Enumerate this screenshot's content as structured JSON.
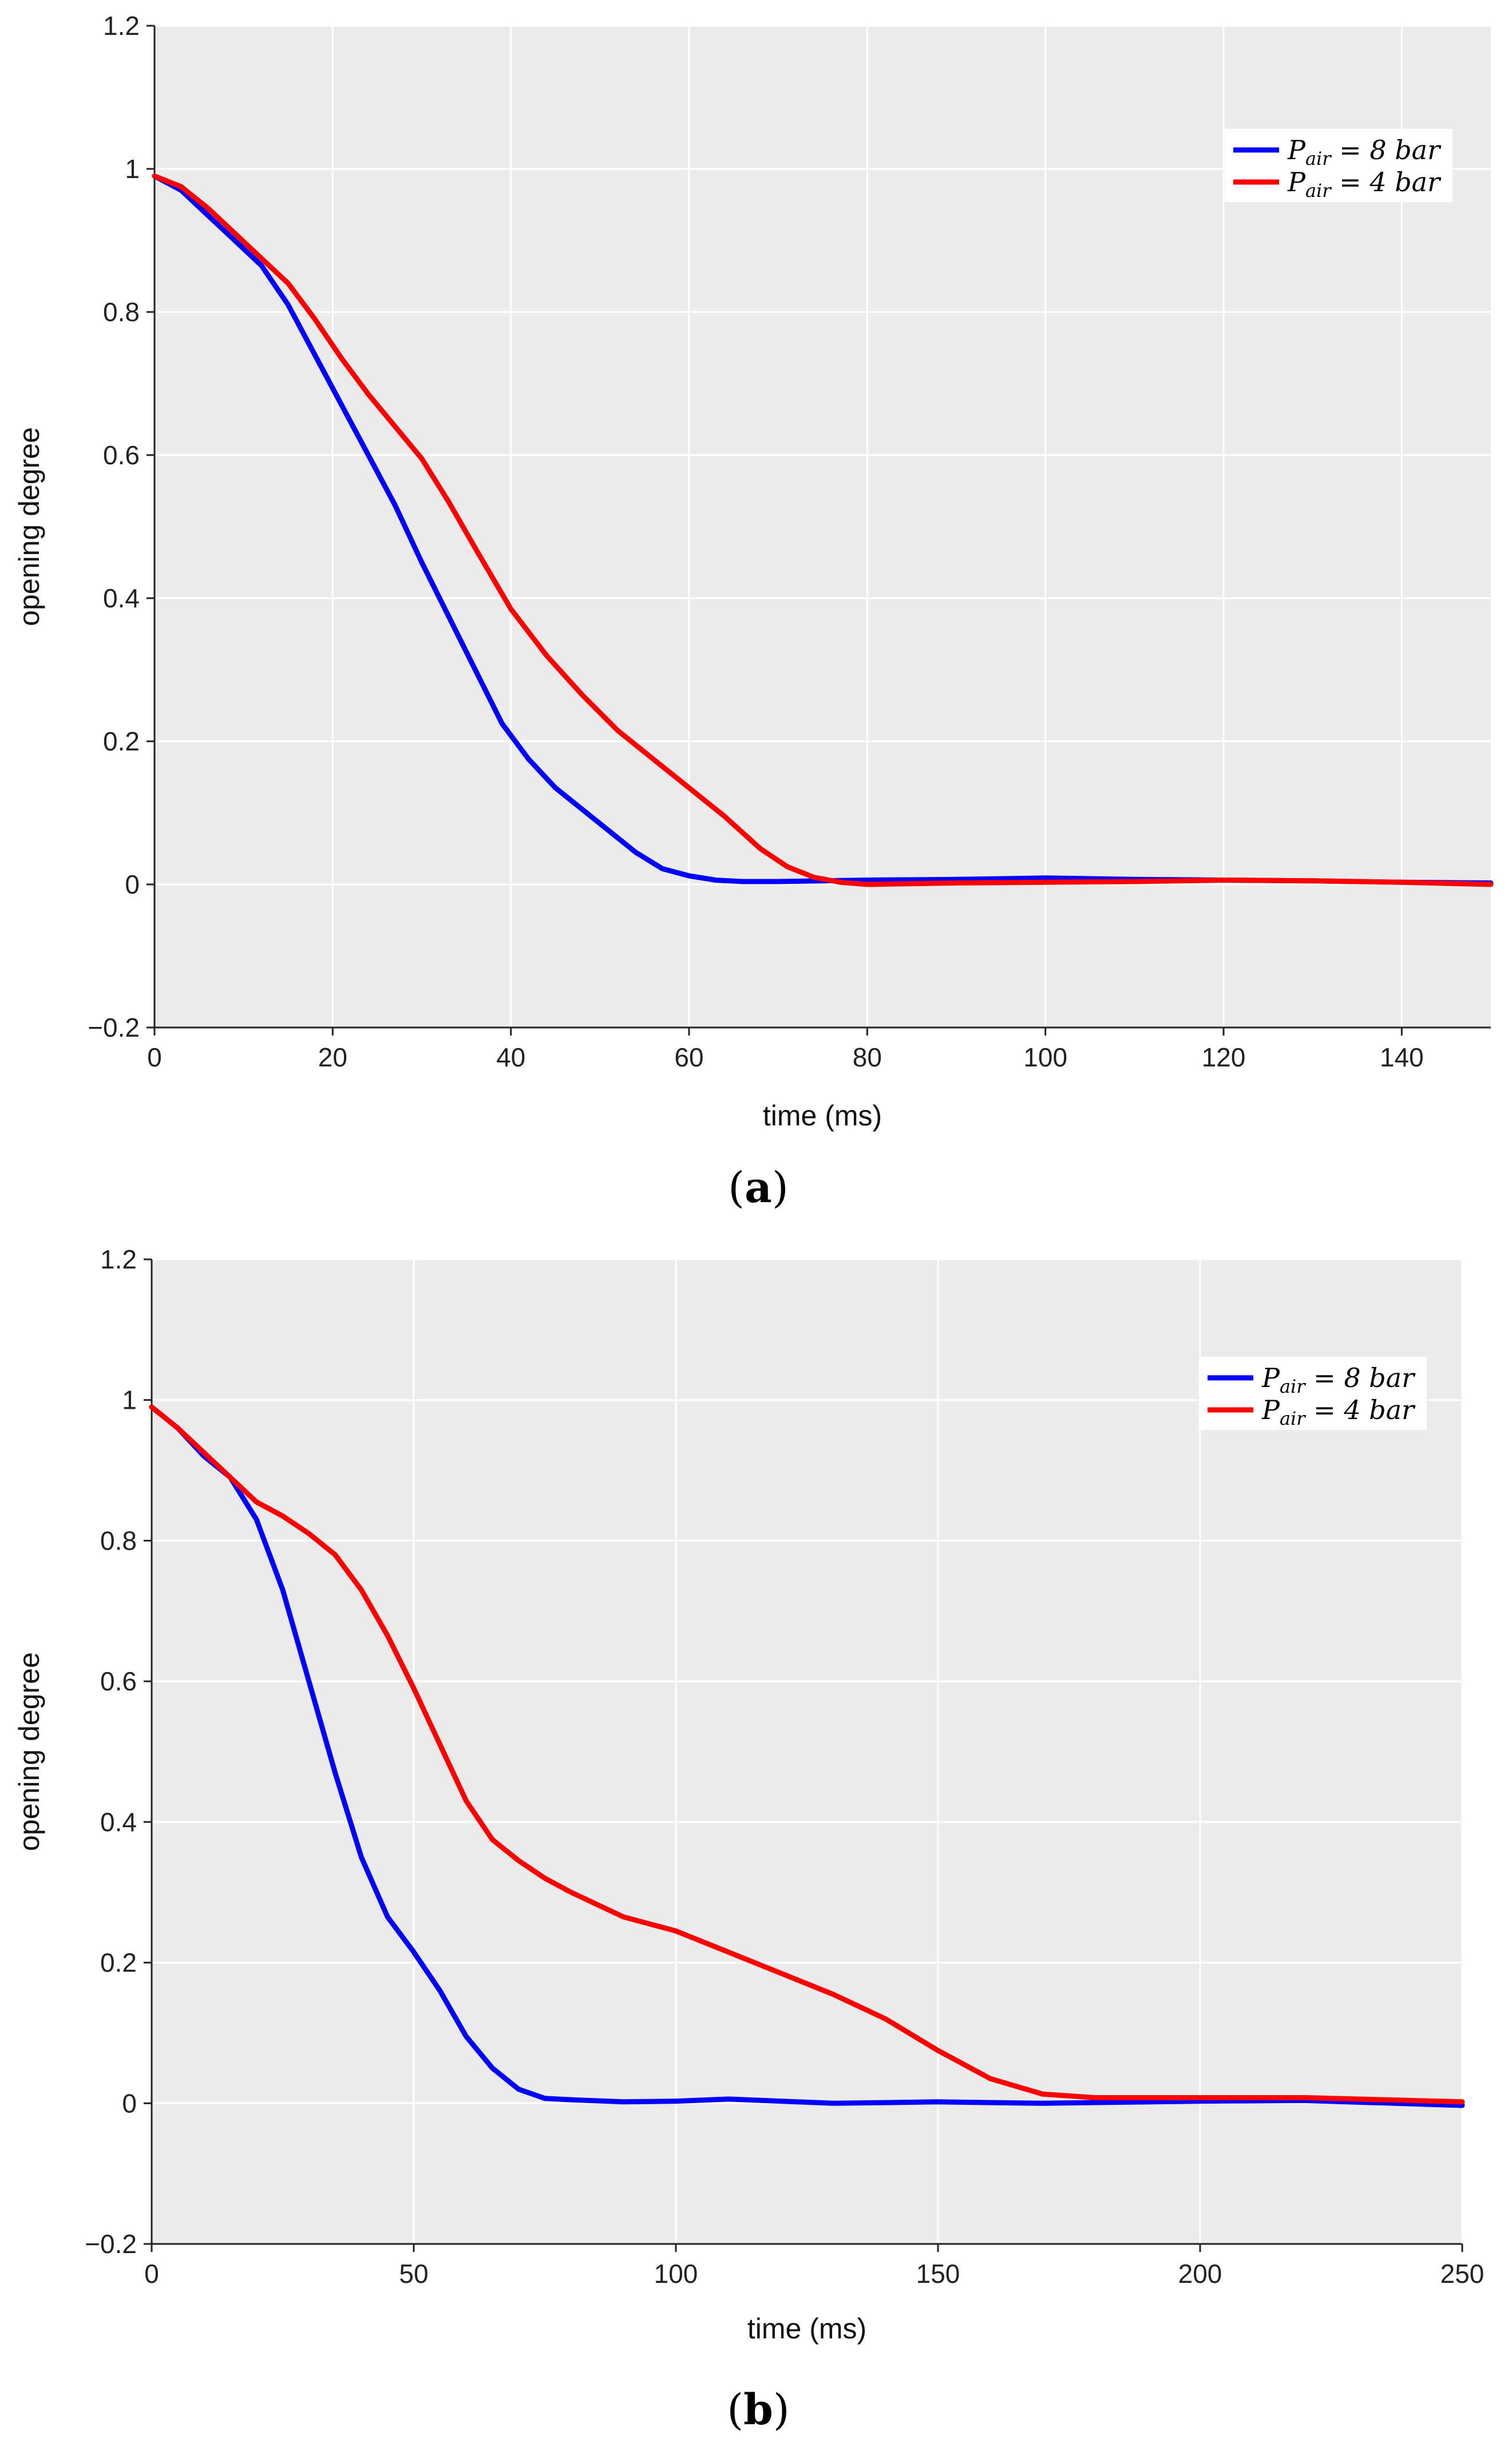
{
  "chart_data": [
    {
      "type": "line",
      "panel_label": "a",
      "xlabel": "time (ms)",
      "ylabel": "opening degree",
      "xlim": [
        0,
        150
      ],
      "ylim": [
        -0.2,
        1.2
      ],
      "xticks": [
        0,
        20,
        40,
        60,
        80,
        100,
        120,
        140
      ],
      "yticks": [
        -0.2,
        0,
        0.2,
        0.4,
        0.6,
        0.8,
        1,
        1.2
      ],
      "ytick_labels": [
        "−0.2",
        "0",
        "0.2",
        "0.4",
        "0.6",
        "0.8",
        "1",
        "1.2"
      ],
      "grid": true,
      "legend_position": "top-right",
      "series": [
        {
          "name": "P_air = 8 bar",
          "label_main": "P",
          "label_sub": "air",
          "label_rest": " = 8 bar",
          "color": "#0000ff",
          "x": [
            0,
            3,
            6,
            9,
            12,
            15,
            18,
            21,
            24,
            27,
            30,
            33,
            36,
            39,
            42,
            45,
            48,
            51,
            54,
            57,
            60,
            63,
            66,
            70,
            75,
            80,
            90,
            100,
            105,
            110,
            120,
            130,
            140,
            150
          ],
          "y": [
            0.99,
            0.97,
            0.935,
            0.9,
            0.865,
            0.81,
            0.74,
            0.67,
            0.6,
            0.53,
            0.45,
            0.375,
            0.3,
            0.225,
            0.175,
            0.135,
            0.105,
            0.075,
            0.045,
            0.022,
            0.012,
            0.006,
            0.004,
            0.004,
            0.005,
            0.006,
            0.007,
            0.009,
            0.008,
            0.007,
            0.006,
            0.005,
            0.003,
            0.002
          ]
        },
        {
          "name": "P_air = 4 bar",
          "label_main": "P",
          "label_sub": "air",
          "label_rest": " = 4 bar",
          "color": "#ff0000",
          "x": [
            0,
            3,
            6,
            9,
            12,
            15,
            18,
            21,
            24,
            27,
            30,
            33,
            36,
            40,
            44,
            48,
            52,
            56,
            60,
            64,
            68,
            71,
            74,
            77,
            80,
            90,
            100,
            110,
            120,
            130,
            140,
            150
          ],
          "y": [
            0.99,
            0.975,
            0.945,
            0.91,
            0.875,
            0.84,
            0.79,
            0.735,
            0.685,
            0.64,
            0.595,
            0.535,
            0.47,
            0.385,
            0.32,
            0.265,
            0.215,
            0.175,
            0.135,
            0.095,
            0.05,
            0.025,
            0.01,
            0.003,
            0.0,
            0.002,
            0.003,
            0.004,
            0.006,
            0.005,
            0.003,
            0.0
          ]
        }
      ]
    },
    {
      "type": "line",
      "panel_label": "b",
      "xlabel": "time (ms)",
      "ylabel": "opening degree",
      "xlim": [
        0,
        250
      ],
      "ylim": [
        -0.2,
        1.2
      ],
      "xticks": [
        0,
        50,
        100,
        150,
        200,
        250
      ],
      "yticks": [
        -0.2,
        0,
        0.2,
        0.4,
        0.6,
        0.8,
        1,
        1.2
      ],
      "ytick_labels": [
        "−0.2",
        "0",
        "0.2",
        "0.4",
        "0.6",
        "0.8",
        "1",
        "1.2"
      ],
      "grid": true,
      "legend_position": "top-right",
      "series": [
        {
          "name": "P_air = 8 bar",
          "label_main": "P",
          "label_sub": "air",
          "label_rest": " = 8 bar",
          "color": "#0000ff",
          "x": [
            0,
            5,
            10,
            15,
            20,
            25,
            30,
            35,
            40,
            45,
            50,
            55,
            60,
            65,
            70,
            75,
            80,
            90,
            100,
            110,
            120,
            130,
            140,
            150,
            170,
            200,
            220,
            250
          ],
          "y": [
            0.99,
            0.96,
            0.92,
            0.89,
            0.83,
            0.73,
            0.6,
            0.47,
            0.35,
            0.265,
            0.215,
            0.16,
            0.095,
            0.05,
            0.02,
            0.007,
            0.005,
            0.002,
            0.003,
            0.006,
            0.003,
            0.0,
            0.001,
            0.002,
            0.0,
            0.003,
            0.004,
            -0.003
          ]
        },
        {
          "name": "P_air = 4 bar",
          "label_main": "P",
          "label_sub": "air",
          "label_rest": " = 4 bar",
          "color": "#ff0000",
          "x": [
            0,
            5,
            10,
            15,
            20,
            25,
            30,
            35,
            40,
            45,
            50,
            55,
            60,
            65,
            70,
            75,
            80,
            90,
            100,
            110,
            120,
            130,
            140,
            150,
            160,
            170,
            180,
            200,
            220,
            250
          ],
          "y": [
            0.99,
            0.96,
            0.925,
            0.89,
            0.855,
            0.835,
            0.81,
            0.78,
            0.73,
            0.665,
            0.59,
            0.51,
            0.43,
            0.375,
            0.345,
            0.32,
            0.3,
            0.265,
            0.245,
            0.215,
            0.185,
            0.155,
            0.12,
            0.075,
            0.035,
            0.013,
            0.008,
            0.008,
            0.008,
            0.002
          ]
        }
      ]
    }
  ]
}
